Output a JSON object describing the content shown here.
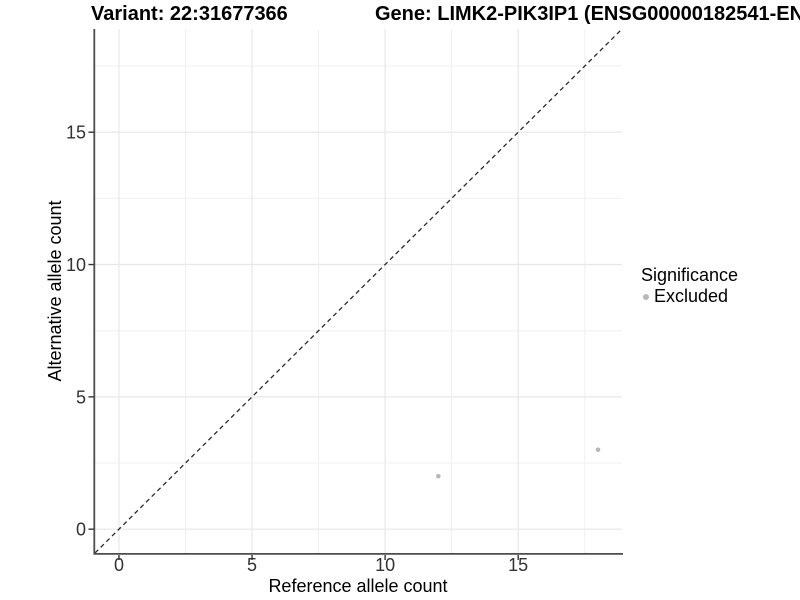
{
  "chart_data": {
    "type": "scatter",
    "title": "Variant: 22:31677366",
    "title_right": "Gene: LIMK2-PIK3IP1 (ENSG00000182541-EN",
    "xlabel": "Reference allele count",
    "ylabel": "Alternative allele count",
    "xlim": [
      -0.9,
      18.9
    ],
    "ylim": [
      -0.9,
      18.9
    ],
    "x_ticks": [
      0,
      5,
      10,
      15
    ],
    "y_ticks": [
      0,
      5,
      10,
      15
    ],
    "x_minor_ticks": [
      2.5,
      7.5,
      12.5,
      17.5
    ],
    "y_minor_ticks": [
      2.5,
      7.5,
      12.5,
      17.5
    ],
    "grid": "major+minor",
    "series": [
      {
        "name": "Excluded",
        "marker": "circle",
        "color": "#b8b8b8",
        "points": [
          {
            "x": 12,
            "y": 2
          },
          {
            "x": 18,
            "y": 3
          }
        ]
      }
    ],
    "reference_line": {
      "kind": "identity",
      "style": "dashed",
      "color": "#2a2a2a"
    },
    "legend": {
      "position": "right",
      "title": "Significance",
      "items": [
        {
          "label": "Excluded",
          "color": "#b8b8b8"
        }
      ]
    }
  },
  "colors": {
    "background": "#ffffff",
    "grid_major": "#e7e7e7",
    "grid_minor": "#f0f0f0",
    "axis_line": "#4d4d4d",
    "tick_mark": "#333333",
    "tick_label": "#333333",
    "title_text": "#000000",
    "point": "#b8b8b8"
  }
}
